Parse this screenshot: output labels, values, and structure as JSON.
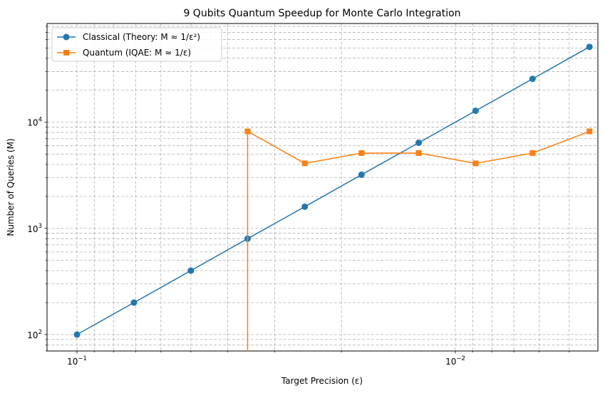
{
  "chart_data": {
    "type": "line",
    "title": "9 Qubits Quantum Speedup for Monte Carlo Integration",
    "xlabel": "Target Precision (ε)",
    "ylabel": "Number of Queries (M)",
    "x_scale": "log",
    "y_scale": "log",
    "x_inverted": true,
    "xlim": [
      0.12,
      0.0042
    ],
    "ylim": [
      70,
      85000
    ],
    "grid": "both (major and minor), dashed",
    "legend_position": "upper-left",
    "x_ticks": [
      {
        "value": 0.1,
        "base": "10",
        "exp": "−1"
      },
      {
        "value": 0.01,
        "base": "10",
        "exp": "−2"
      }
    ],
    "y_ticks": [
      {
        "value": 100,
        "base": "10",
        "exp": "2"
      },
      {
        "value": 1000,
        "base": "10",
        "exp": "3"
      },
      {
        "value": 10000,
        "base": "10",
        "exp": "4"
      }
    ],
    "x": [
      0.1,
      0.0707,
      0.05,
      0.0354,
      0.025,
      0.0177,
      0.0125,
      0.00884,
      0.00625,
      0.00442
    ],
    "series": [
      {
        "name": "Classical (Theory: M ≈ 1/ε²)",
        "color": "#1f77b4",
        "marker": "circle",
        "values": [
          100,
          200,
          400,
          800,
          1600,
          3200,
          6400,
          12800,
          25600,
          51200
        ]
      },
      {
        "name": "Quantum (IQAE: M ≈ 1/ε)",
        "color": "#ff7f0e",
        "marker": "square",
        "values": [
          null,
          null,
          null,
          8192,
          4096,
          5120,
          5120,
          4096,
          5120,
          8192
        ],
        "note_zero_at_x": 0.0354
      }
    ]
  }
}
